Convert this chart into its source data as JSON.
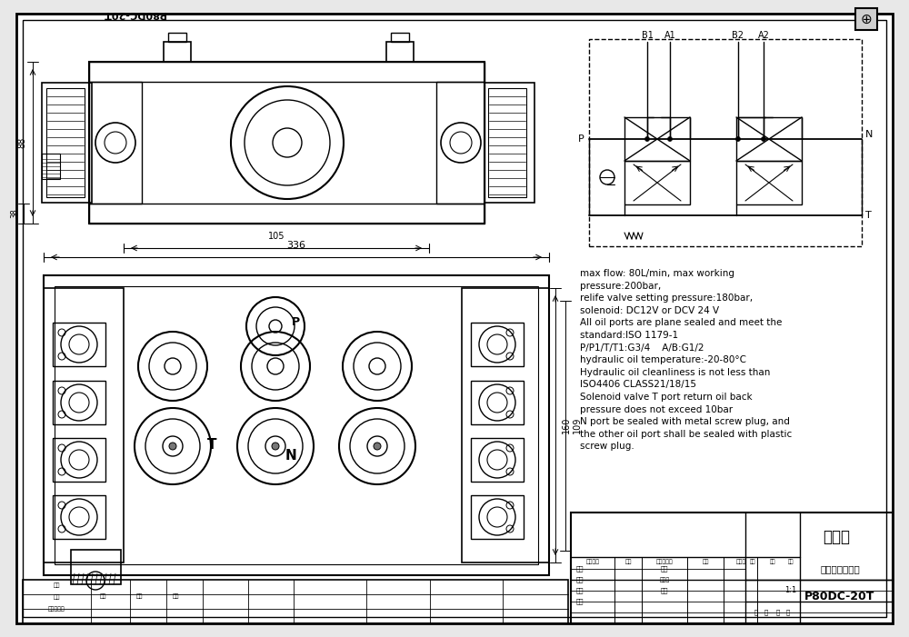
{
  "bg_color": "#e8e8e8",
  "paper_color": "#ffffff",
  "line_color": "#000000",
  "title_top_left": "P80DC-20T",
  "spec_text": "max flow: 80L/min, max working\npressure:200bar,\nrelife valve setting pressure:180bar,\nsolenoid: DC12V or DCV 24 V\nAll oil ports are plane sealed and meet the\nstandard:ISO 1179-1\nP/P1/T/T1:G3/4    A/B:G1/2\nhydraulic oil temperature:-20-80°C\nHydraulic oil cleanliness is not less than\nISO4406 CLASS21/18/15\nSolenoid valve T port return oil back\npressure does not exceed 10bar\nN port be sealed with metal screw plug, and\nthe other oil port shall be sealed with plastic\nscrew plug.",
  "drawing_title": "外形图",
  "drawing_name": "电磁控制多路阀",
  "drawing_number": "P80DC-20T",
  "dim_336": "336",
  "dim_105": "105",
  "dim_88": "88",
  "dim_38": "38",
  "dim_160": "160",
  "dim_109": "109"
}
